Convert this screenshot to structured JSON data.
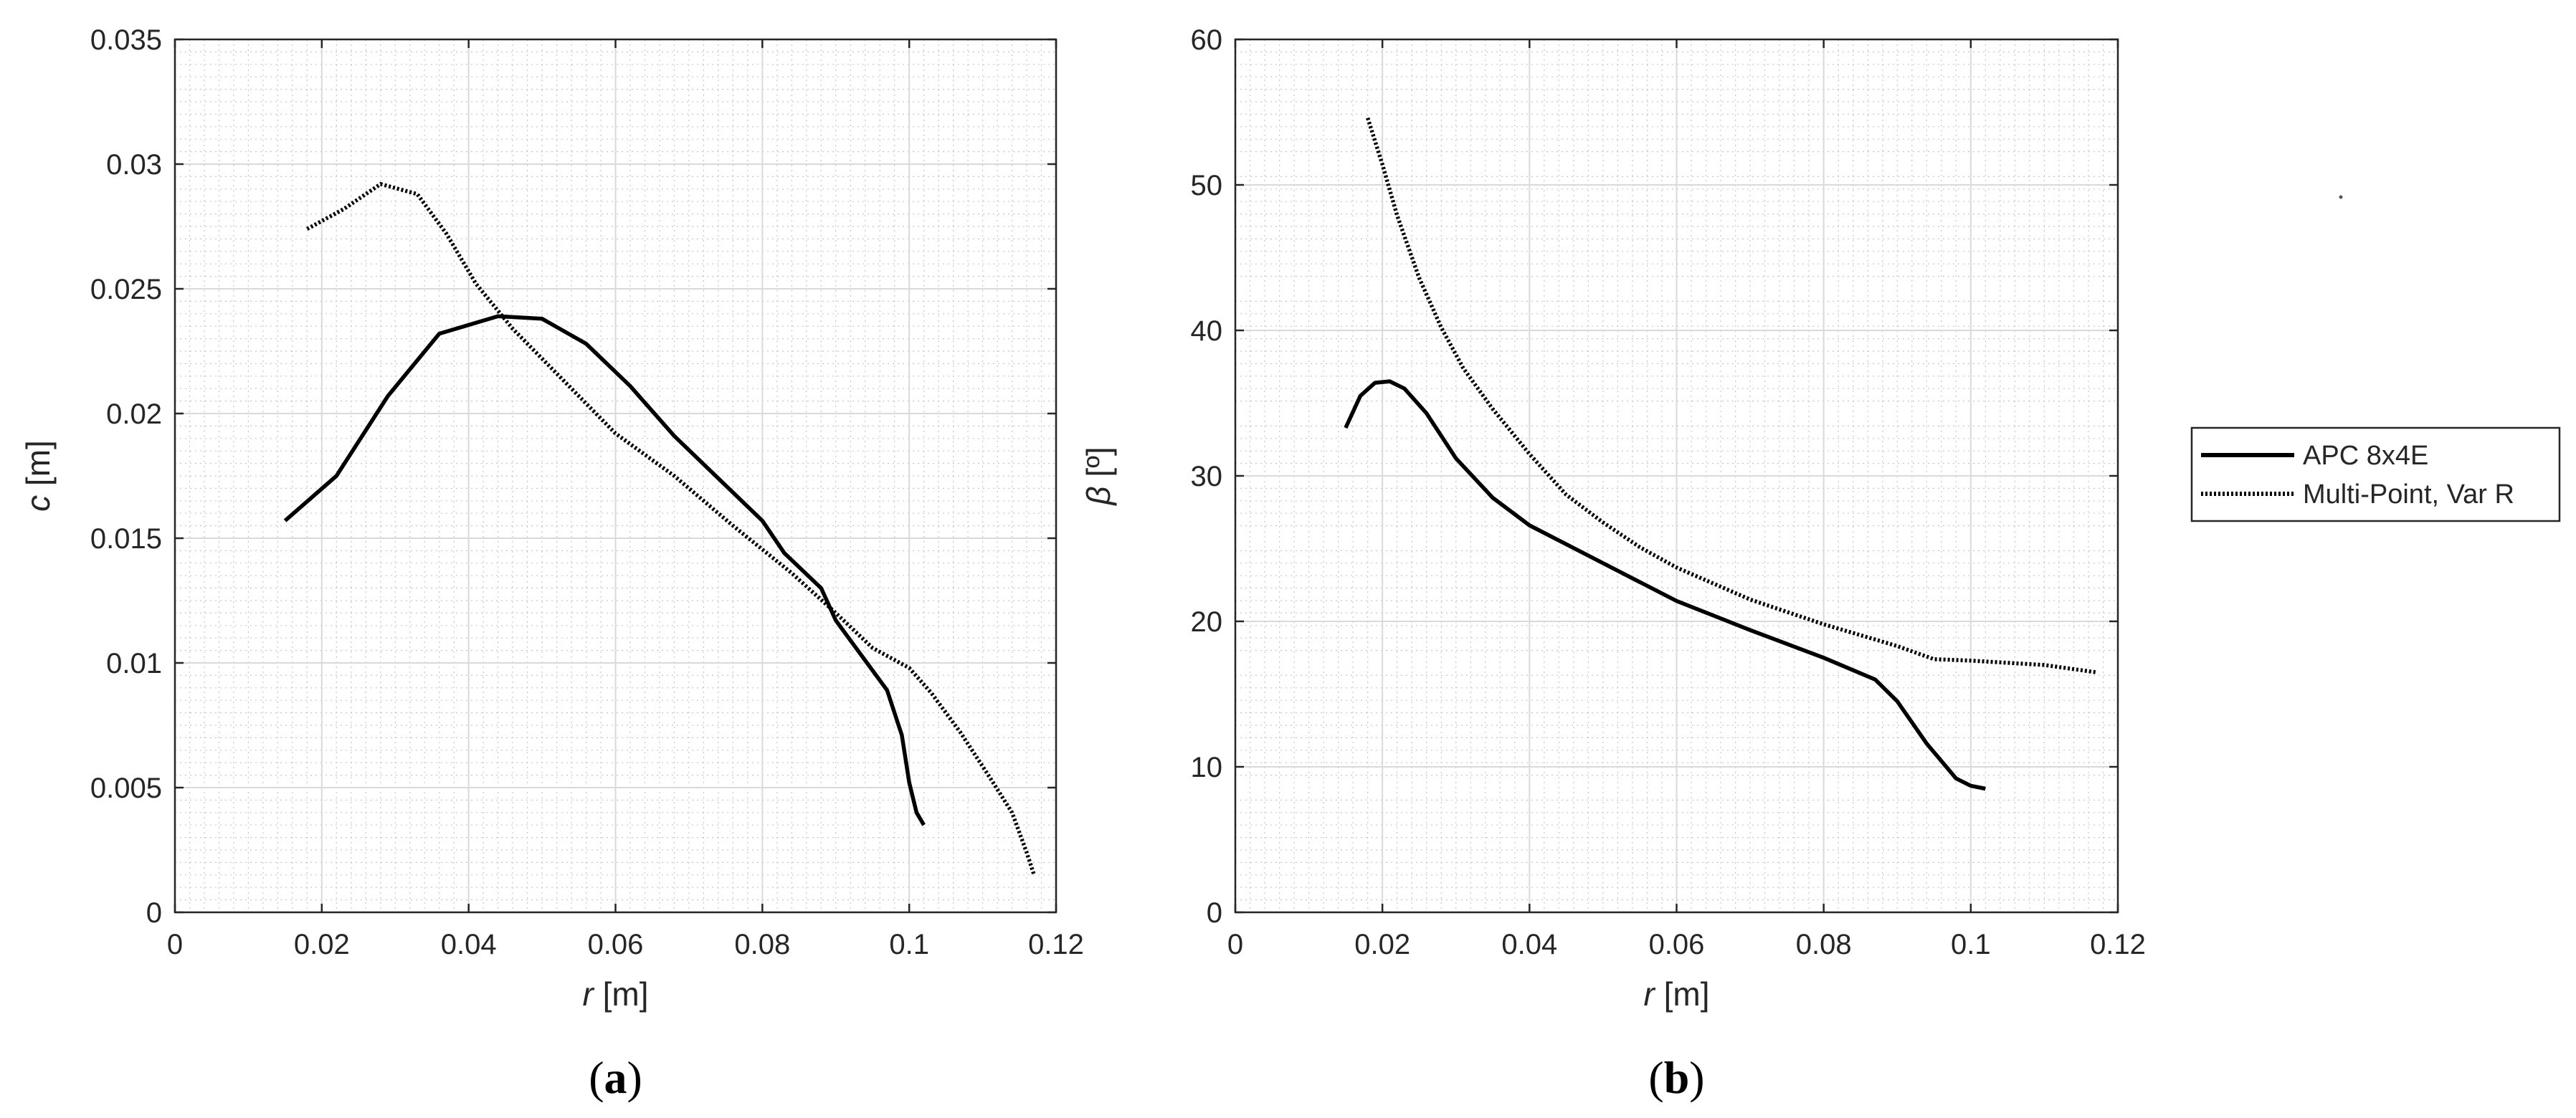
{
  "legend": [
    {
      "label": "APC 8x4E",
      "style": "solid"
    },
    {
      "label": "Multi-Point, Var R",
      "style": "dotted"
    }
  ],
  "chart_data": [
    {
      "type": "line",
      "panel_label": {
        "open": "(",
        "letter": "a",
        "close": ")"
      },
      "xlabel": {
        "symbol": "r",
        "unit": " [m]"
      },
      "ylabel": {
        "symbol": "c",
        "unit": " [m]"
      },
      "xlim": [
        0,
        0.12
      ],
      "ylim": [
        0,
        0.035
      ],
      "xticks": [
        0,
        0.02,
        0.04,
        0.06,
        0.08,
        0.1,
        0.12
      ],
      "xtick_labels": [
        "0",
        "0.02",
        "0.04",
        "0.06",
        "0.08",
        "0.1",
        "0.12"
      ],
      "yticks": [
        0,
        0.005,
        0.01,
        0.015,
        0.02,
        0.025,
        0.03,
        0.035
      ],
      "ytick_labels": [
        "0",
        "0.005",
        "0.01",
        "0.015",
        "0.02",
        "0.025",
        "0.03",
        "0.035"
      ],
      "grid": true,
      "minor_grid": true,
      "series": [
        {
          "name": "APC 8x4E",
          "style": "solid",
          "x": [
            0.015,
            0.022,
            0.029,
            0.036,
            0.044,
            0.05,
            0.056,
            0.062,
            0.068,
            0.074,
            0.08,
            0.083,
            0.088,
            0.09,
            0.097,
            0.099,
            0.1,
            0.101,
            0.102
          ],
          "y": [
            0.0157,
            0.0175,
            0.0207,
            0.0232,
            0.0239,
            0.0238,
            0.0228,
            0.0211,
            0.0191,
            0.0174,
            0.0157,
            0.0144,
            0.013,
            0.0117,
            0.0089,
            0.0071,
            0.0052,
            0.004,
            0.0035
          ]
        },
        {
          "name": "Multi-Point, Var R",
          "style": "dotted",
          "x": [
            0.018,
            0.023,
            0.028,
            0.033,
            0.037,
            0.041,
            0.046,
            0.052,
            0.06,
            0.068,
            0.076,
            0.084,
            0.09,
            0.095,
            0.1,
            0.103,
            0.107,
            0.111,
            0.114,
            0.116,
            0.117
          ],
          "y": [
            0.0274,
            0.0282,
            0.0292,
            0.0288,
            0.0272,
            0.0252,
            0.0234,
            0.0216,
            0.0192,
            0.0175,
            0.0155,
            0.0136,
            0.012,
            0.0106,
            0.0098,
            0.0088,
            0.0072,
            0.0054,
            0.004,
            0.0024,
            0.0015
          ]
        }
      ]
    },
    {
      "type": "line",
      "panel_label": {
        "open": "(",
        "letter": "b",
        "close": ")"
      },
      "xlabel": {
        "symbol": "r",
        "unit": " [m]"
      },
      "ylabel": {
        "symbol": "β",
        "unit": " [º]"
      },
      "xlim": [
        0,
        0.12
      ],
      "ylim": [
        0,
        60
      ],
      "xticks": [
        0,
        0.02,
        0.04,
        0.06,
        0.08,
        0.1,
        0.12
      ],
      "xtick_labels": [
        "0",
        "0.02",
        "0.04",
        "0.06",
        "0.08",
        "0.1",
        "0.12"
      ],
      "yticks": [
        0,
        10,
        20,
        30,
        40,
        50,
        60
      ],
      "ytick_labels": [
        "0",
        "10",
        "20",
        "30",
        "40",
        "50",
        "60"
      ],
      "grid": true,
      "minor_grid": true,
      "series": [
        {
          "name": "APC 8x4E",
          "style": "solid",
          "x": [
            0.015,
            0.017,
            0.019,
            0.021,
            0.023,
            0.026,
            0.03,
            0.035,
            0.04,
            0.05,
            0.06,
            0.07,
            0.08,
            0.087,
            0.09,
            0.094,
            0.098,
            0.1,
            0.102
          ],
          "y": [
            33.3,
            35.5,
            36.4,
            36.5,
            36.0,
            34.3,
            31.2,
            28.5,
            26.6,
            24.0,
            21.4,
            19.4,
            17.5,
            16.0,
            14.5,
            11.6,
            9.2,
            8.7,
            8.5
          ]
        },
        {
          "name": "Multi-Point, Var R",
          "style": "dotted",
          "x": [
            0.018,
            0.02,
            0.022,
            0.025,
            0.028,
            0.031,
            0.035,
            0.04,
            0.045,
            0.05,
            0.055,
            0.06,
            0.07,
            0.08,
            0.09,
            0.095,
            0.1,
            0.11,
            0.117
          ],
          "y": [
            54.6,
            51.4,
            47.9,
            43.6,
            40.2,
            37.4,
            34.6,
            31.5,
            28.7,
            26.8,
            25.1,
            23.7,
            21.5,
            19.8,
            18.3,
            17.4,
            17.3,
            17.0,
            16.5
          ]
        }
      ]
    }
  ]
}
